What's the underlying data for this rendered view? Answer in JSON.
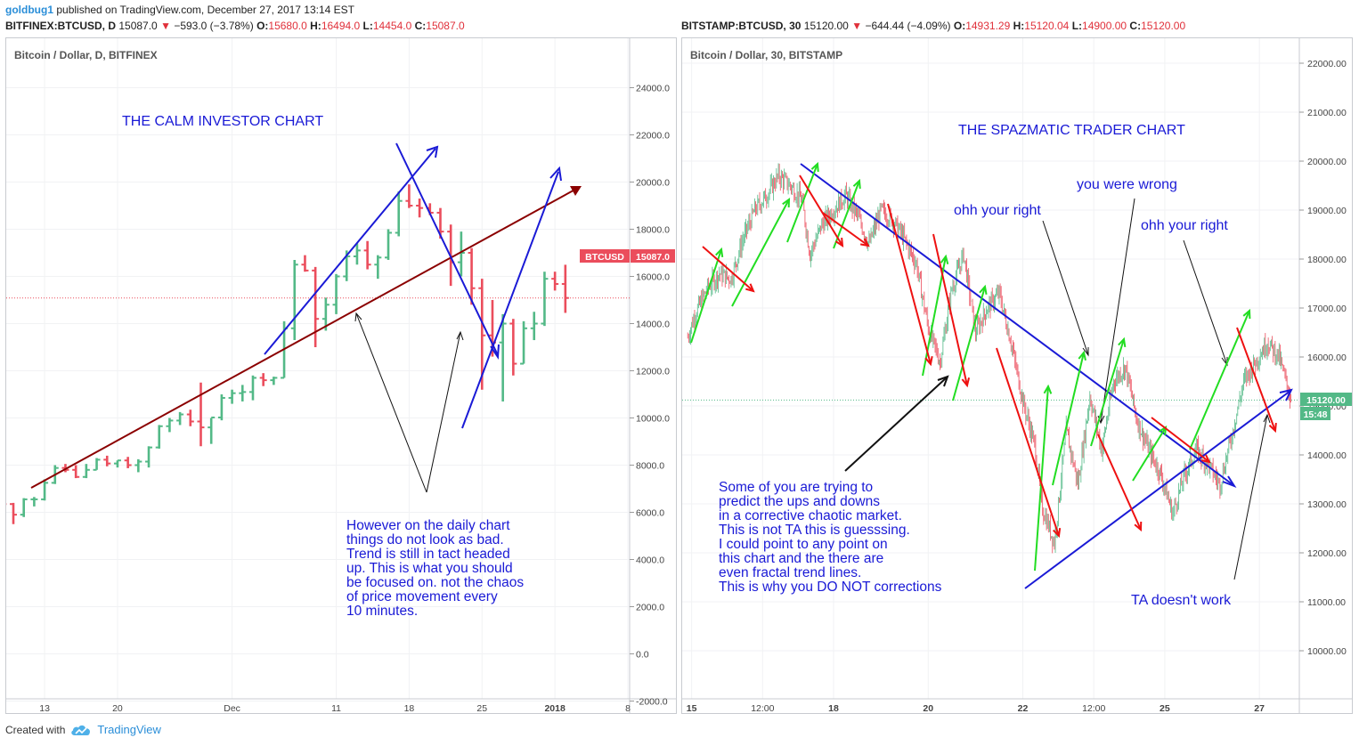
{
  "header": {
    "user": "goldbug1",
    "published": "published on TradingView.com, December 27, 2017 13:14 EST"
  },
  "colors": {
    "up": "#53b987",
    "down": "#eb4d5c",
    "annotation_blue": "#1a1ad6",
    "trend_red": "#8b0000",
    "arrow_green": "#22dd22",
    "arrow_red": "#ee1111",
    "grid": "#f1f2f4",
    "axis_text": "#444444",
    "price_tag_red": "#eb4d5c",
    "price_tag_green": "#53b987"
  },
  "left_chart": {
    "ohlc": {
      "symbol": "BITFINEX:BTCUSD, D",
      "last": "15087.0",
      "change": "−593.0 (−3.78%)",
      "o": "15680.0",
      "h": "16494.0",
      "l": "14454.0",
      "c": "15087.0"
    },
    "legend": "Bitcoin / Dollar, D, BITFINEX",
    "symbol_tag": "BTCUSD",
    "price_tag": "15087.0",
    "title": "THE CALM INVESTOR CHART",
    "note": [
      "However on the daily chart",
      "things do not look as bad.",
      "Trend is still in tact headed",
      "up. This is what you should",
      "be focused on. not the chaos",
      "of price movement every",
      "10 minutes."
    ],
    "x_ticks": [
      "13",
      "20",
      "Dec",
      "11",
      "18",
      "25",
      "2018",
      "8"
    ],
    "y_ticks": [
      "24000.0",
      "22000.0",
      "20000.0",
      "18000.0",
      "16000.0",
      "14000.0",
      "12000.0",
      "10000.0",
      "8000.0",
      "6000.0",
      "4000.0",
      "2000.0",
      "0.0",
      "-2000.0"
    ]
  },
  "right_chart": {
    "ohlc": {
      "symbol": "BITSTAMP:BTCUSD, 30",
      "last": "15120.00",
      "change": "−644.44 (−4.09%)",
      "o": "14931.29",
      "h": "15120.04",
      "l": "14900.00",
      "c": "15120.00"
    },
    "legend": "Bitcoin / Dollar, 30, BITSTAMP",
    "price_tag": "15120.00",
    "countdown_tag": "15:48",
    "title": "THE SPAZMATIC TRADER CHART",
    "labels": {
      "ohh1": "ohh your right",
      "wrong": "you were wrong",
      "ohh2": "ohh your right",
      "ta": "TA doesn't work"
    },
    "note": [
      "Some of you are trying to",
      "predict the ups and downs",
      "in a corrective chaotic market.",
      "This is not TA this is guesssing.",
      "I could point to any point on",
      "this chart and the there are",
      "even fractal trend lines.",
      "This is why you DO NOT corrections"
    ],
    "x_ticks": [
      "15",
      "12:00",
      "18",
      "20",
      "22",
      "12:00",
      "25",
      "27"
    ],
    "y_ticks": [
      "22000.00",
      "21000.00",
      "20000.00",
      "19000.00",
      "18000.00",
      "17000.00",
      "16000.00",
      "15000.00",
      "14000.00",
      "13000.00",
      "12000.00",
      "11000.00",
      "10000.00"
    ]
  },
  "footer": {
    "created_with": "Created with",
    "brand": "TradingView"
  },
  "chart_data": [
    {
      "type": "ohlc",
      "title": "THE CALM INVESTOR CHART",
      "subtitle": "Bitcoin / Dollar, D, BITFINEX",
      "x_domain": [
        "2017-11-10",
        "2018-01-08"
      ],
      "ylim": [
        -2800,
        24500
      ],
      "last_price": 15087,
      "candles": [
        [
          7300,
          7400,
          6900,
          7000
        ],
        [
          7000,
          7100,
          6600,
          6750
        ],
        [
          6750,
          6900,
          6200,
          6350
        ],
        [
          6350,
          6400,
          5500,
          5900
        ],
        [
          5900,
          6600,
          5800,
          6550
        ],
        [
          6550,
          6650,
          6250,
          6550
        ],
        [
          6550,
          7400,
          6500,
          7250
        ],
        [
          7250,
          8000,
          7200,
          7880
        ],
        [
          7880,
          8050,
          7700,
          7800
        ],
        [
          7800,
          8000,
          7450,
          7500
        ],
        [
          7500,
          8050,
          7450,
          7800
        ],
        [
          7800,
          8300,
          7800,
          8230
        ],
        [
          8230,
          8400,
          7950,
          8070
        ],
        [
          8070,
          8200,
          7900,
          8200
        ],
        [
          8200,
          8350,
          7870,
          8000
        ],
        [
          8000,
          8250,
          7700,
          8150
        ],
        [
          8150,
          8800,
          7900,
          8750
        ],
        [
          8750,
          9700,
          8700,
          9650
        ],
        [
          9650,
          10000,
          9400,
          9890
        ],
        [
          9890,
          10250,
          9700,
          10150
        ],
        [
          10150,
          10350,
          9650,
          9850
        ],
        [
          9850,
          11500,
          8800,
          9600
        ],
        [
          9600,
          10000,
          8900,
          10020
        ],
        [
          10020,
          11000,
          9900,
          10850
        ],
        [
          10850,
          11200,
          10600,
          11050
        ],
        [
          11050,
          11400,
          10700,
          11100
        ],
        [
          11100,
          11800,
          10750,
          11700
        ],
        [
          11700,
          11900,
          11350,
          11600
        ],
        [
          11600,
          11750,
          11400,
          11700
        ],
        [
          11700,
          14100,
          11700,
          13800
        ],
        [
          13800,
          16700,
          13300,
          16500
        ],
        [
          16500,
          16900,
          16200,
          16250
        ],
        [
          16250,
          16400,
          13000,
          14200
        ],
        [
          14200,
          15100,
          13700,
          14800
        ],
        [
          14800,
          16100,
          14400,
          16000
        ],
        [
          16000,
          17100,
          15800,
          16850
        ],
        [
          16850,
          17400,
          16500,
          17100
        ],
        [
          17100,
          17500,
          16300,
          16500
        ],
        [
          16500,
          16900,
          15900,
          16800
        ],
        [
          16800,
          18000,
          16700,
          17850
        ],
        [
          17850,
          19600,
          17700,
          19200
        ],
        [
          19200,
          19900,
          18900,
          19000
        ],
        [
          19000,
          19300,
          18500,
          18900
        ],
        [
          18900,
          19100,
          18600,
          18700
        ],
        [
          18700,
          18900,
          17600,
          17900
        ],
        [
          17900,
          18200,
          15600,
          16600
        ],
        [
          16600,
          17900,
          16000,
          17000
        ],
        [
          17000,
          17200,
          14800,
          15500
        ],
        [
          15500,
          15900,
          11200,
          13500
        ],
        [
          13500,
          15000,
          12600,
          13200
        ],
        [
          13200,
          14400,
          10700,
          14000
        ],
        [
          14000,
          14200,
          11800,
          12300
        ],
        [
          12300,
          14100,
          12300,
          13800
        ],
        [
          13800,
          14500,
          13300,
          14000
        ],
        [
          14000,
          16200,
          13900,
          15900
        ],
        [
          15900,
          16200,
          15400,
          15680
        ],
        [
          15680,
          16494,
          14454,
          15087
        ]
      ]
    },
    {
      "type": "line",
      "title": "THE SPAZMATIC TRADER CHART",
      "subtitle": "Bitcoin / Dollar, 30, BITSTAMP",
      "x_domain": [
        "2017-12-14T21:00",
        "2017-12-27T18:00"
      ],
      "ylim": [
        9000,
        22500
      ],
      "last_price": 15120,
      "series": [
        {
          "x": [
            "2017-12-14T22:00",
            "2017-12-15T02:00",
            "2017-12-15T08:00",
            "2017-12-15T14:00",
            "2017-12-15T20:00",
            "2017-12-16T02:00",
            "2017-12-16T08:00",
            "2017-12-16T14:00",
            "2017-12-16T20:00",
            "2017-12-17T02:00",
            "2017-12-17T08:00",
            "2017-12-17T12:00",
            "2017-12-17T18:00",
            "2017-12-18T00:00",
            "2017-12-18T06:00",
            "2017-12-18T12:00",
            "2017-12-18T18:00",
            "2017-12-19T00:00",
            "2017-12-19T06:00",
            "2017-12-19T12:00",
            "2017-12-19T18:00",
            "2017-12-20T00:00",
            "2017-12-20T06:00",
            "2017-12-20T12:00",
            "2017-12-20T18:00",
            "2017-12-21T00:00",
            "2017-12-21T06:00",
            "2017-12-21T12:00",
            "2017-12-21T18:00",
            "2017-12-22T00:00",
            "2017-12-22T06:00",
            "2017-12-22T10:00",
            "2017-12-22T16:00",
            "2017-12-22T22:00",
            "2017-12-23T04:00",
            "2017-12-23T10:00",
            "2017-12-23T16:00",
            "2017-12-23T22:00",
            "2017-12-24T04:00",
            "2017-12-24T10:00",
            "2017-12-24T16:00",
            "2017-12-24T22:00",
            "2017-12-25T04:00",
            "2017-12-25T10:00",
            "2017-12-25T16:00",
            "2017-12-25T22:00",
            "2017-12-26T04:00",
            "2017-12-26T10:00",
            "2017-12-26T16:00",
            "2017-12-26T22:00",
            "2017-12-27T04:00",
            "2017-12-27T10:00",
            "2017-12-27T16:00"
          ],
          "values": [
            16400,
            16900,
            17400,
            17700,
            17600,
            18400,
            19000,
            19300,
            19700,
            19500,
            19200,
            18100,
            18700,
            19000,
            19300,
            18900,
            18300,
            19000,
            18800,
            18400,
            17900,
            16600,
            15900,
            17400,
            18100,
            16500,
            17000,
            17300,
            16300,
            15100,
            14200,
            12900,
            12200,
            14500,
            13400,
            15200,
            14100,
            15500,
            15800,
            14700,
            14100,
            13600,
            12800,
            13600,
            14100,
            13800,
            13400,
            14400,
            15500,
            15900,
            16300,
            16000,
            15120
          ]
        }
      ]
    }
  ]
}
